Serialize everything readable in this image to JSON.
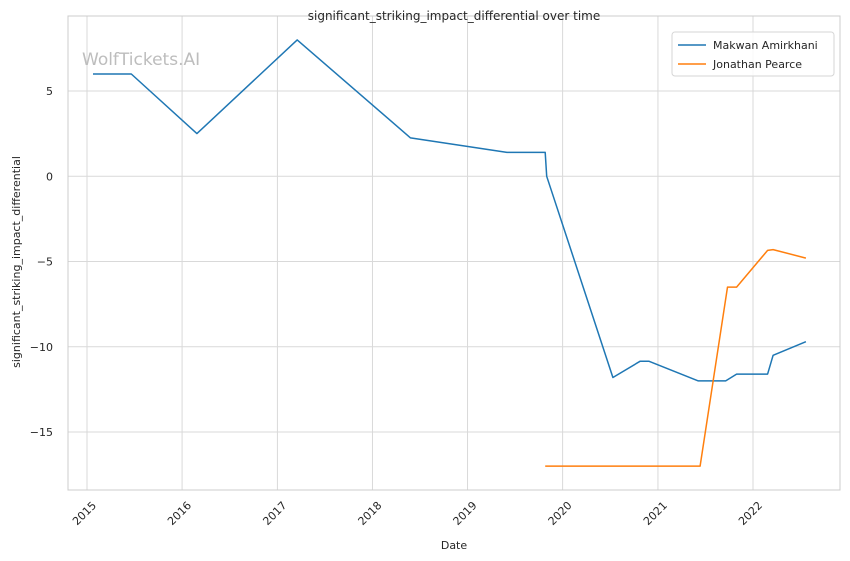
{
  "chart_data": {
    "type": "line",
    "title": "significant_striking_impact_differential over time",
    "xlabel": "Date",
    "ylabel": "significant_striking_impact_differential",
    "x_ticks": [
      "2015",
      "2016",
      "2017",
      "2018",
      "2019",
      "2020",
      "2021",
      "2022"
    ],
    "y_ticks": [
      5,
      0,
      -5,
      -10,
      -15
    ],
    "y_tick_labels": [
      "5",
      "0",
      "−5",
      "−10",
      "−15"
    ],
    "xlim": [
      "2014-10-20",
      "2022-12-01"
    ],
    "ylim": [
      -18.4,
      9.4
    ],
    "grid": true,
    "legend": "top-right",
    "watermark": "WolfTickets.AI",
    "series": [
      {
        "name": "Makwan Amirkhani",
        "color": "#1f77b4",
        "points": [
          [
            "2015-01-24",
            6.0
          ],
          [
            "2015-06-20",
            6.0
          ],
          [
            "2016-02-27",
            2.5
          ],
          [
            "2017-03-18",
            8.0
          ],
          [
            "2018-05-27",
            2.25
          ],
          [
            "2019-06-01",
            1.4
          ],
          [
            "2019-10-26",
            1.4
          ],
          [
            "2019-11-01",
            0.0
          ],
          [
            "2020-07-12",
            -11.8
          ],
          [
            "2020-10-24",
            -10.85
          ],
          [
            "2020-11-28",
            -10.85
          ],
          [
            "2021-06-05",
            -12.0
          ],
          [
            "2021-09-18",
            -12.0
          ],
          [
            "2021-10-30",
            -11.6
          ],
          [
            "2022-02-26",
            -11.6
          ],
          [
            "2022-03-19",
            -10.5
          ],
          [
            "2022-07-23",
            -9.7
          ]
        ]
      },
      {
        "name": "Jonathan Pearce",
        "color": "#ff7f0e",
        "points": [
          [
            "2019-10-26",
            -17.0
          ],
          [
            "2021-06-12",
            -17.0
          ],
          [
            "2021-09-25",
            -6.5
          ],
          [
            "2021-10-30",
            -6.5
          ],
          [
            "2022-02-26",
            -4.35
          ],
          [
            "2022-03-19",
            -4.3
          ],
          [
            "2022-07-23",
            -4.8
          ]
        ]
      }
    ]
  }
}
